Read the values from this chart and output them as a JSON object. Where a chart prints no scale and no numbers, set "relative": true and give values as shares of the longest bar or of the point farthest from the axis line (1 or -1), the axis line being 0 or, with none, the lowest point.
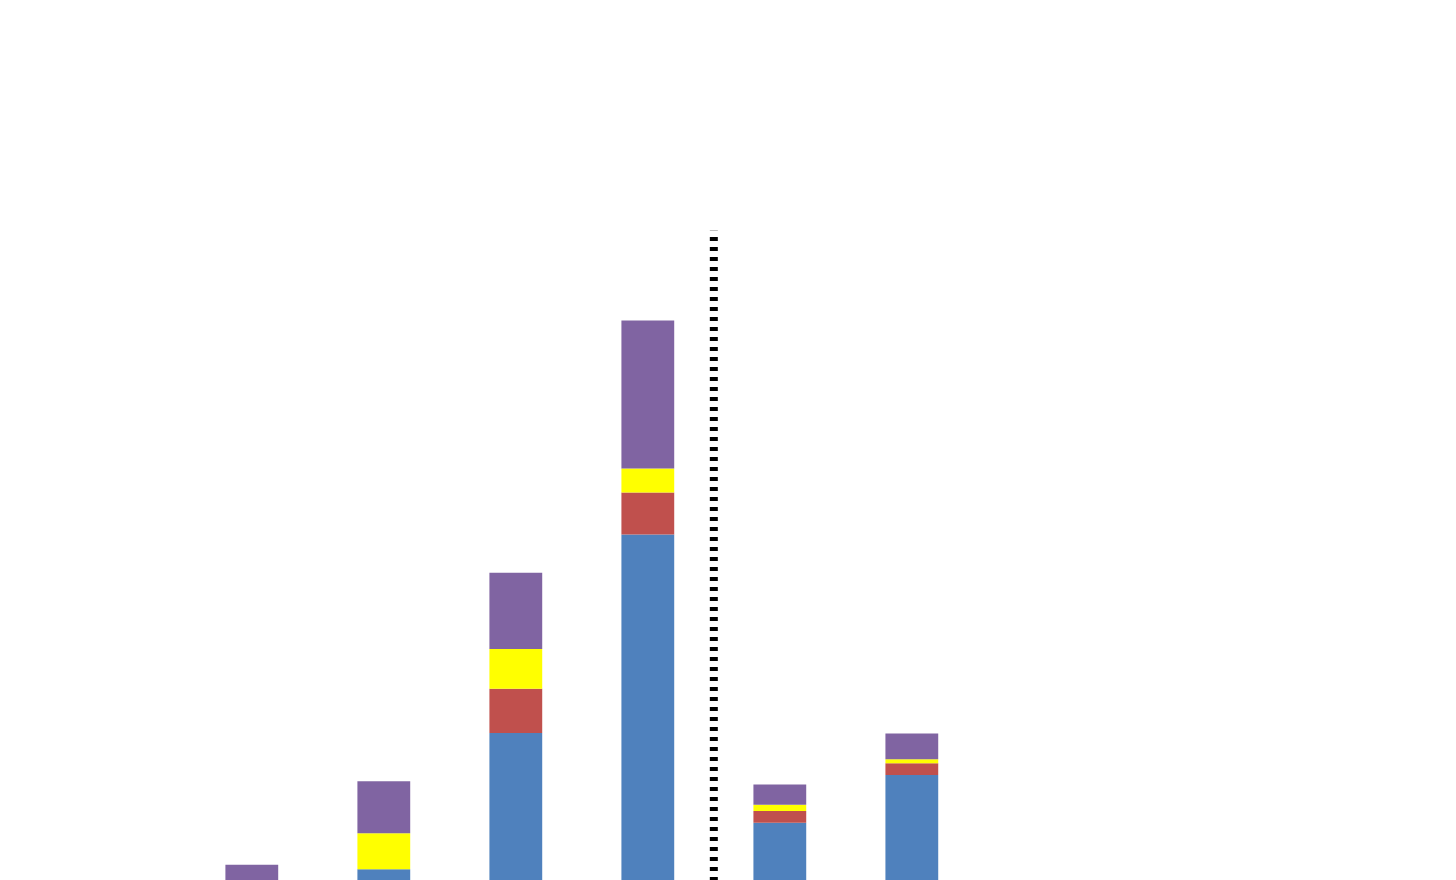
{
  "chart_data": {
    "type": "bar",
    "stacked": true,
    "relative": true,
    "categories": [
      null,
      null,
      null,
      null,
      null,
      null
    ],
    "series": [
      {
        "color": "#4f81bd",
        "values": [
          0,
          0.021,
          0.264,
          0.618,
          0.104,
          0.189
        ]
      },
      {
        "color": "#c0504d",
        "values": [
          0,
          0,
          0.079,
          0.075,
          0.021,
          0.021
        ]
      },
      {
        "color": "#ffff00",
        "values": [
          0,
          0.064,
          0.071,
          0.043,
          0.011,
          0.007
        ]
      },
      {
        "color": "#8064a2",
        "values": [
          0.029,
          0.093,
          0.136,
          0.264,
          0.036,
          0.046
        ]
      }
    ],
    "grid": false
  }
}
